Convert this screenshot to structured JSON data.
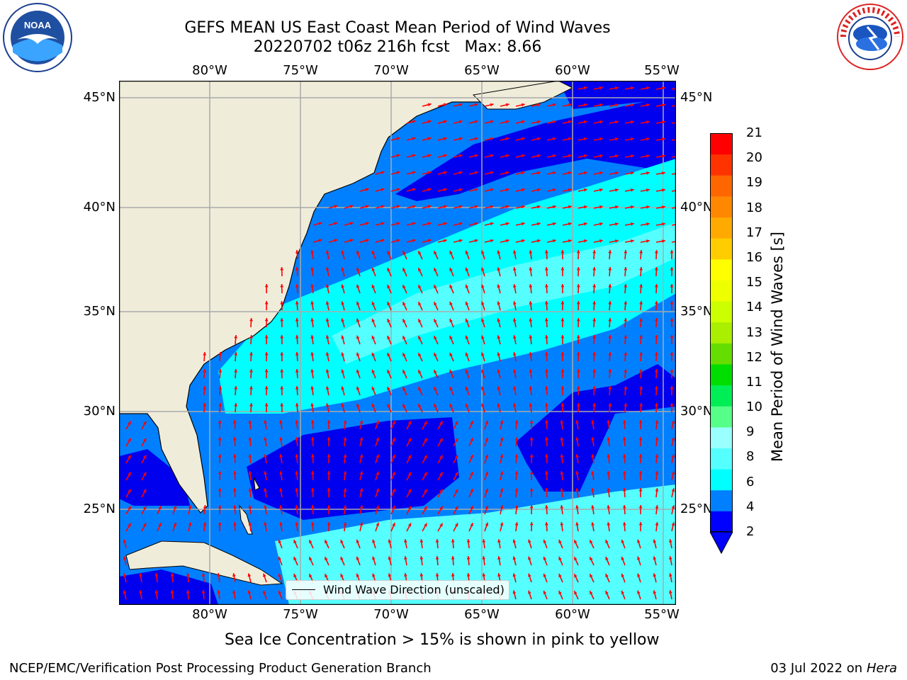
{
  "title": {
    "line1": "GEFS MEAN US East Coast Mean Period of Wind Waves",
    "line2": "20220702 t06z 216h fcst   Max: 8.66"
  },
  "map": {
    "lon_labels": [
      "80°W",
      "75°W",
      "70°W",
      "65°W",
      "60°W",
      "55°W"
    ],
    "lat_labels": [
      "45°N",
      "40°N",
      "35°N",
      "30°N",
      "25°N"
    ],
    "colors": {
      "land": "#efedda",
      "blue": "#0080ff",
      "dark_blue": "#0000ee",
      "cyan": "#00ffff",
      "light_cyan": "#5ffcfc",
      "grid": "#aaaaaa",
      "vector": "#ff0000",
      "coastline": "#000000"
    },
    "legend": "Wind Wave Direction (unscaled)"
  },
  "colorbar": {
    "label": "Mean Period of Wind Waves [s]",
    "ticks": [
      "21",
      "20",
      "19",
      "18",
      "17",
      "16",
      "15",
      "14",
      "13",
      "12",
      "11",
      "10",
      "9",
      "8",
      "6",
      "4",
      "2"
    ],
    "colors": [
      "#0000ff",
      "#0080ff",
      "#00ffff",
      "#55ffff",
      "#99ffff",
      "#55ff88",
      "#00ee55",
      "#00dd00",
      "#66dd00",
      "#aaee00",
      "#ccff00",
      "#eeff00",
      "#ffff00",
      "#ffcc00",
      "#ffaa00",
      "#ff8800",
      "#ff6600",
      "#ff3300",
      "#ff0000"
    ]
  },
  "caption": "Sea Ice Concentration > 15% is shown in pink to yellow",
  "footer": {
    "left": "NCEP/EMC/Verification Post Processing Product Generation Branch",
    "right_date": "03 Jul 2022 on ",
    "right_host": "Hera"
  },
  "logos": {
    "noaa": "NOAA",
    "nws": "NATIONAL WEATHER SERVICE"
  }
}
